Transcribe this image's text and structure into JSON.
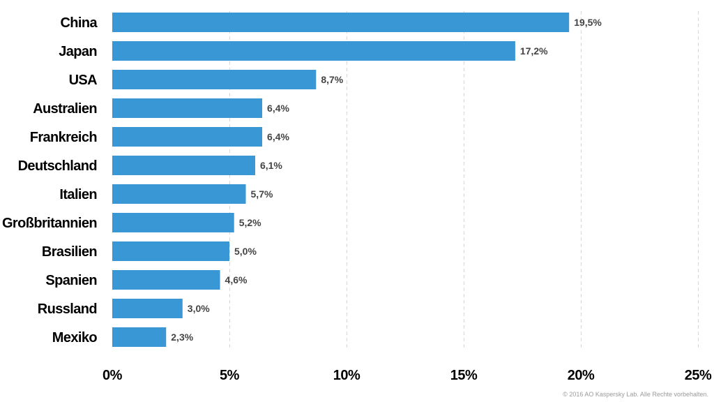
{
  "chart_data": {
    "type": "bar",
    "orientation": "horizontal",
    "categories": [
      "China",
      "Japan",
      "USA",
      "Australien",
      "Frankreich",
      "Deutschland",
      "Italien",
      "Großbritannien",
      "Brasilien",
      "Spanien",
      "Russland",
      "Mexiko"
    ],
    "values": [
      19.5,
      17.2,
      8.7,
      6.4,
      6.4,
      6.1,
      5.7,
      5.2,
      5.0,
      4.6,
      3.0,
      2.3
    ],
    "value_labels": [
      "19,5%",
      "17,2%",
      "8,7%",
      "6,4%",
      "6,4%",
      "6,1%",
      "5,7%",
      "5,2%",
      "5,0%",
      "4,6%",
      "3,0%",
      "2,3%"
    ],
    "xlim": [
      0,
      25
    ],
    "x_ticks": [
      0,
      5,
      10,
      15,
      20,
      25
    ],
    "x_tick_labels": [
      "0%",
      "5%",
      "10%",
      "15%",
      "20%",
      "25%"
    ],
    "grid": "vertical dashed",
    "bar_color": "#3a97d6"
  },
  "copyright": "© 2016 AO Kaspersky Lab. Alle Rechte vorbehalten."
}
